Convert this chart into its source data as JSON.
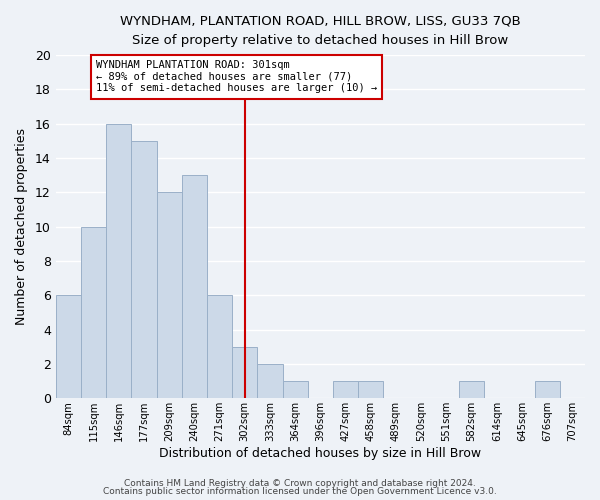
{
  "title": "WYNDHAM, PLANTATION ROAD, HILL BROW, LISS, GU33 7QB",
  "subtitle": "Size of property relative to detached houses in Hill Brow",
  "xlabel": "Distribution of detached houses by size in Hill Brow",
  "ylabel": "Number of detached properties",
  "bar_color": "#ccd9e8",
  "bar_edge_color": "#9ab0c8",
  "bins": [
    "84sqm",
    "115sqm",
    "146sqm",
    "177sqm",
    "209sqm",
    "240sqm",
    "271sqm",
    "302sqm",
    "333sqm",
    "364sqm",
    "396sqm",
    "427sqm",
    "458sqm",
    "489sqm",
    "520sqm",
    "551sqm",
    "582sqm",
    "614sqm",
    "645sqm",
    "676sqm",
    "707sqm"
  ],
  "counts": [
    6,
    10,
    16,
    15,
    12,
    13,
    6,
    3,
    2,
    1,
    0,
    1,
    1,
    0,
    0,
    0,
    1,
    0,
    0,
    1,
    0
  ],
  "vline_x": 7,
  "vline_color": "#cc0000",
  "annotation_line1": "WYNDHAM PLANTATION ROAD: 301sqm",
  "annotation_line2": "← 89% of detached houses are smaller (77)",
  "annotation_line3": "11% of semi-detached houses are larger (10) →",
  "ylim": [
    0,
    20
  ],
  "yticks": [
    0,
    2,
    4,
    6,
    8,
    10,
    12,
    14,
    16,
    18,
    20
  ],
  "footer1": "Contains HM Land Registry data © Crown copyright and database right 2024.",
  "footer2": "Contains public sector information licensed under the Open Government Licence v3.0.",
  "background_color": "#eef2f7",
  "grid_color": "#ffffff",
  "fig_width": 6.0,
  "fig_height": 5.0
}
